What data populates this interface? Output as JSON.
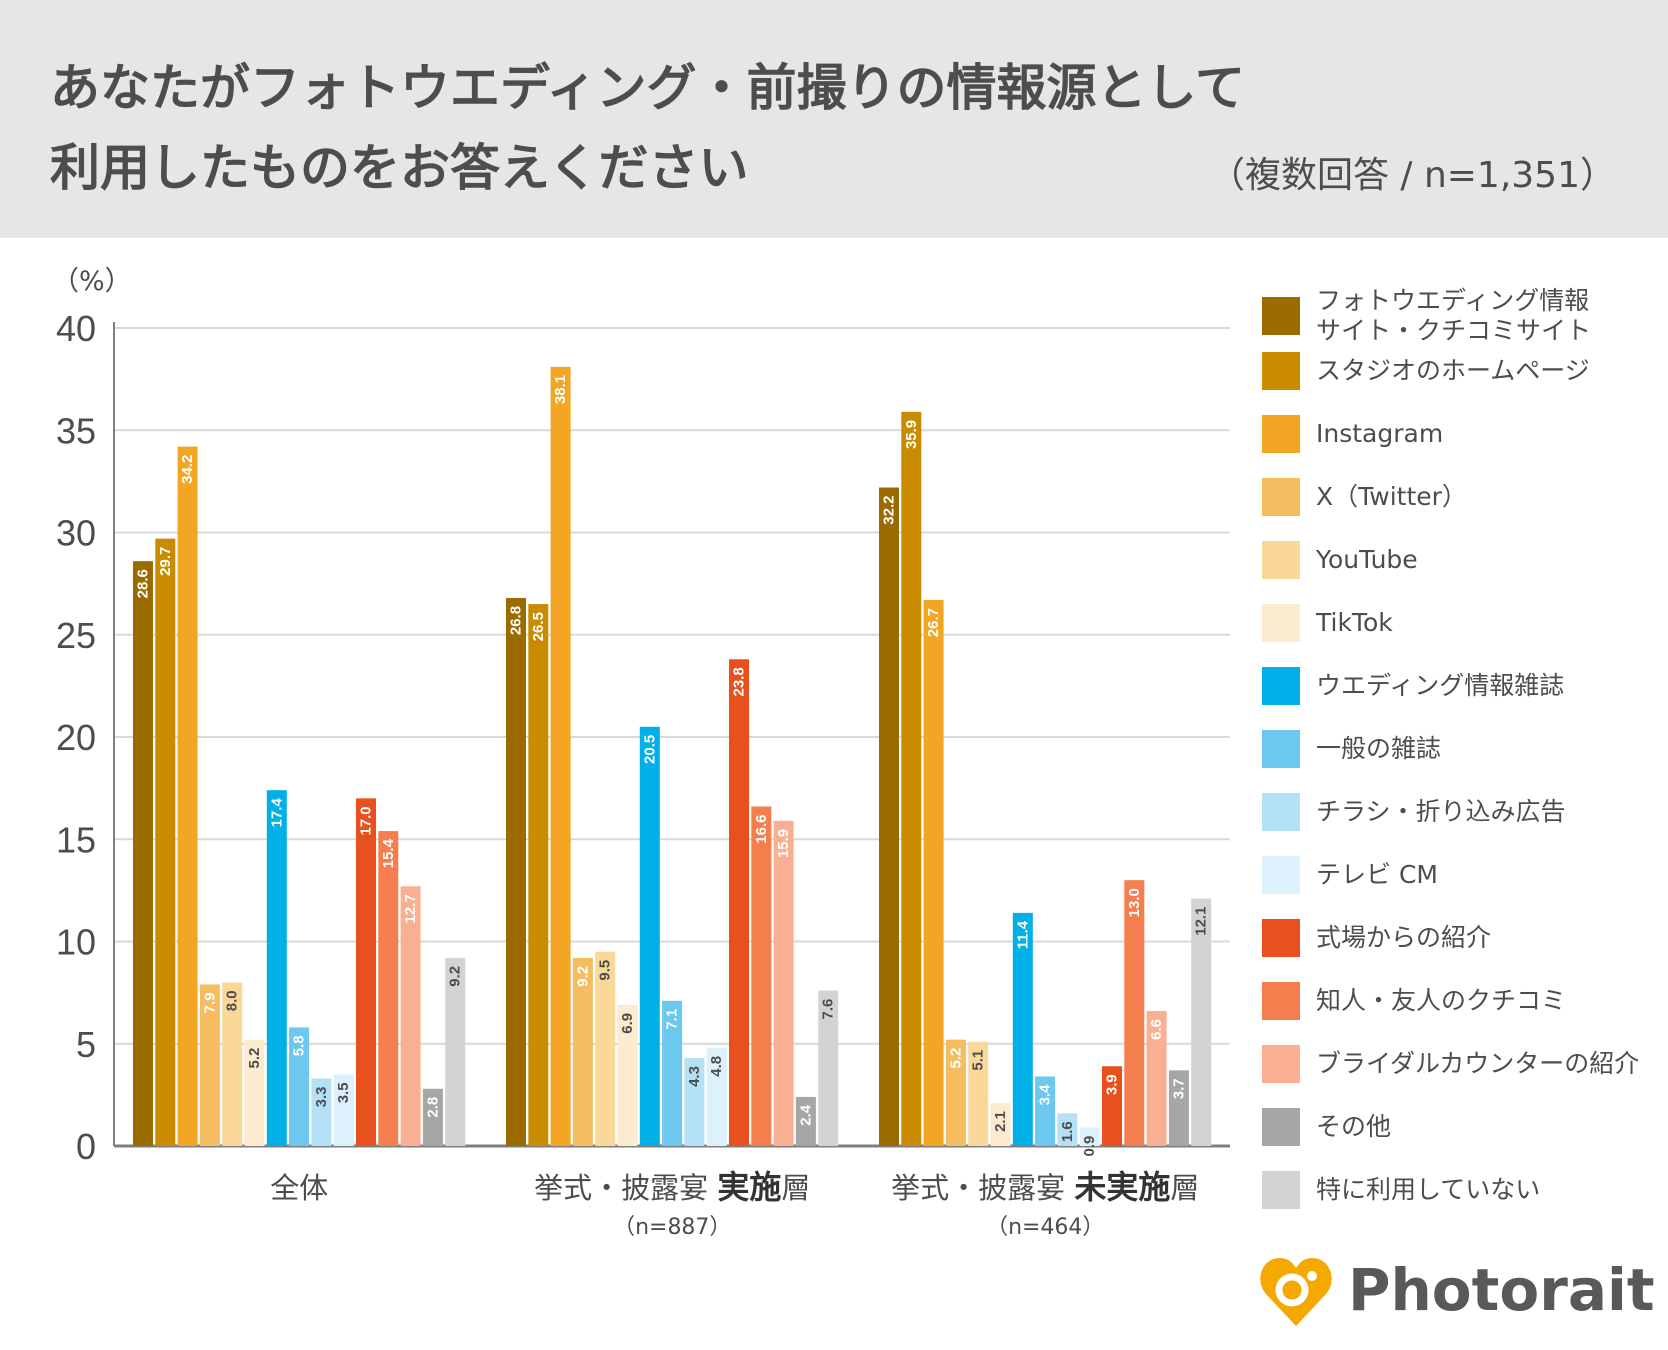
{
  "header": {
    "title_line1": "あなたがフォトウエディング・前撮りの情報源として",
    "title_line2": "利用したものをお答えください",
    "subtitle": "（複数回答 / n=1,351）"
  },
  "logo": {
    "text": "Photorait",
    "icon": "heart-icon"
  },
  "chart_data": {
    "type": "bar",
    "title": "あなたがフォトウエディング・前撮りの情報源として利用したものをお答えください",
    "ylabel": "（%）",
    "xlabel": "",
    "ylim": [
      0,
      40
    ],
    "yticks": [
      0,
      5,
      10,
      15,
      20,
      25,
      30,
      35,
      40
    ],
    "grid": true,
    "legend_position": "right",
    "groups": [
      {
        "label": "全体",
        "label_parts": [
          {
            "text": "全体",
            "bold": false
          }
        ],
        "n": ""
      },
      {
        "label": "挙式・披露宴 実施層",
        "label_parts": [
          {
            "text": "挙式・披露宴 ",
            "bold": false
          },
          {
            "text": "実施",
            "bold": true
          },
          {
            "text": "層",
            "bold": false
          }
        ],
        "n": "（n=887）"
      },
      {
        "label": "挙式・披露宴 未実施層",
        "label_parts": [
          {
            "text": "挙式・披露宴 ",
            "bold": false
          },
          {
            "text": "未実施",
            "bold": true
          },
          {
            "text": "層",
            "bold": false
          }
        ],
        "n": "（n=464）"
      }
    ],
    "series": [
      {
        "name": "フォトウエディング情報サイト・クチコミサイト",
        "label_lines": [
          "フォトウエディング情報",
          "サイト・クチコミサイト"
        ],
        "color": "#9c6b00",
        "text_color": "#ffffff",
        "values": [
          28.6,
          26.8,
          32.2
        ]
      },
      {
        "name": "スタジオのホームページ",
        "label_lines": [
          "スタジオのホームページ"
        ],
        "color": "#c98c00",
        "text_color": "#ffffff",
        "values": [
          29.7,
          26.5,
          35.9
        ]
      },
      {
        "name": "Instagram",
        "label_lines": [
          "Instagram"
        ],
        "color": "#f2a623",
        "text_color": "#ffffff",
        "values": [
          34.2,
          38.1,
          26.7
        ]
      },
      {
        "name": "X（Twitter）",
        "label_lines": [
          "X（Twitter）"
        ],
        "color": "#f6bd60",
        "text_color": "#ffffff",
        "values": [
          7.9,
          9.2,
          5.2
        ]
      },
      {
        "name": "YouTube",
        "label_lines": [
          "YouTube"
        ],
        "color": "#f9d89a",
        "text_color": "#4d4d4d",
        "values": [
          8.0,
          9.5,
          5.1
        ]
      },
      {
        "name": "TikTok",
        "label_lines": [
          "TikTok"
        ],
        "color": "#fcebcf",
        "text_color": "#4d4d4d",
        "values": [
          5.2,
          6.9,
          2.1
        ]
      },
      {
        "name": "ウエディング情報雑誌",
        "label_lines": [
          "ウエディング情報雑誌"
        ],
        "color": "#00b0e6",
        "text_color": "#ffffff",
        "values": [
          17.4,
          20.5,
          11.4
        ]
      },
      {
        "name": "一般の雑誌",
        "label_lines": [
          "一般の雑誌"
        ],
        "color": "#6cc8ef",
        "text_color": "#ffffff",
        "values": [
          5.8,
          7.1,
          3.4
        ]
      },
      {
        "name": "チラシ・折り込み広告",
        "label_lines": [
          "チラシ・折り込み広告"
        ],
        "color": "#b4e1f6",
        "text_color": "#4d4d4d",
        "values": [
          3.3,
          4.3,
          1.6
        ]
      },
      {
        "name": "テレビ CM",
        "label_lines": [
          "テレビ CM"
        ],
        "color": "#dcf1fb",
        "text_color": "#4d4d4d",
        "values": [
          3.5,
          4.8,
          0.9
        ]
      },
      {
        "name": "式場からの紹介",
        "label_lines": [
          "式場からの紹介"
        ],
        "color": "#e8501e",
        "text_color": "#ffffff",
        "values": [
          17.0,
          23.8,
          3.9
        ]
      },
      {
        "name": "知人・友人のクチコミ",
        "label_lines": [
          "知人・友人のクチコミ"
        ],
        "color": "#f57e4e",
        "text_color": "#ffffff",
        "values": [
          15.4,
          16.6,
          13.0
        ]
      },
      {
        "name": "ブライダルカウンターの紹介",
        "label_lines": [
          "ブライダルカウンターの紹介"
        ],
        "color": "#f9b092",
        "text_color": "#ffffff",
        "values": [
          12.7,
          15.9,
          6.6
        ]
      },
      {
        "name": "その他",
        "label_lines": [
          "その他"
        ],
        "color": "#a6a6a6",
        "text_color": "#ffffff",
        "values": [
          2.8,
          2.4,
          3.7
        ]
      },
      {
        "name": "特に利用していない",
        "label_lines": [
          "特に利用していない"
        ],
        "color": "#d3d3d3",
        "text_color": "#4d4d4d",
        "values": [
          9.2,
          7.6,
          12.1
        ]
      }
    ]
  }
}
